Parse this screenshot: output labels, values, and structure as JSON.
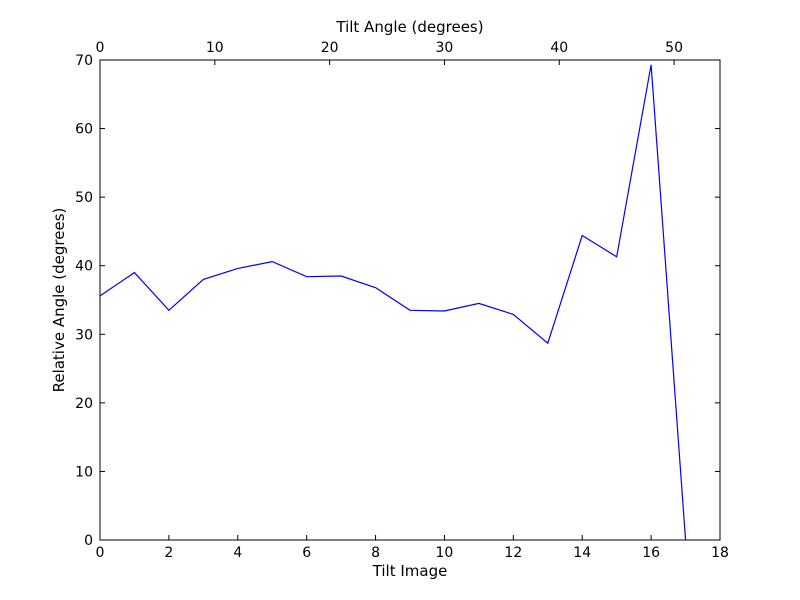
{
  "chart_data": {
    "type": "line",
    "xlabel": "Tilt Image",
    "ylabel": "Relative Angle (degrees)",
    "top_xlabel": "Tilt Angle (degrees)",
    "xlim": [
      0,
      18
    ],
    "ylim": [
      0,
      70
    ],
    "top_xlim": [
      0,
      54
    ],
    "x_ticks": [
      0,
      2,
      4,
      6,
      8,
      10,
      12,
      14,
      16,
      18
    ],
    "y_ticks": [
      0,
      10,
      20,
      30,
      40,
      50,
      60,
      70
    ],
    "top_x_ticks": [
      0,
      10,
      20,
      30,
      40,
      50
    ],
    "grid": false,
    "series": [
      {
        "color": "#0000ff",
        "x": [
          0,
          1,
          2,
          3,
          4,
          5,
          6,
          7,
          8,
          9,
          10,
          11,
          12,
          13,
          14,
          15,
          16,
          17
        ],
        "y": [
          35.6,
          39.0,
          33.5,
          38.0,
          39.6,
          40.6,
          38.4,
          38.5,
          36.8,
          33.5,
          33.4,
          34.5,
          32.9,
          28.7,
          44.4,
          41.3,
          69.3,
          0.0
        ]
      }
    ]
  }
}
